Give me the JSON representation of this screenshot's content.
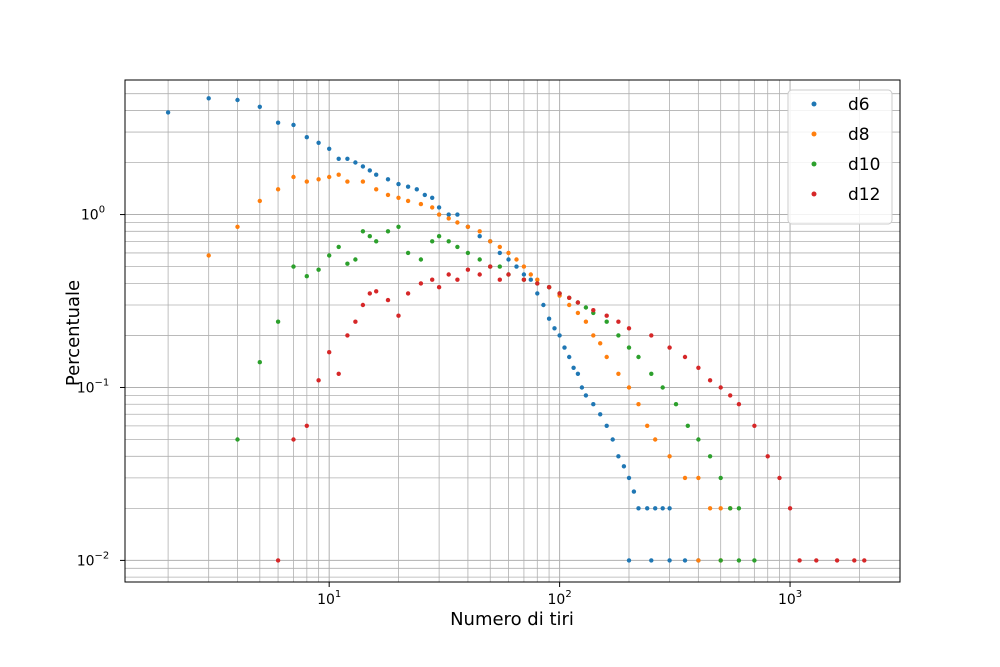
{
  "chart_data": {
    "type": "scatter",
    "title": "",
    "xlabel": "Numero di tiri",
    "ylabel": "Percentuale",
    "xscale": "log",
    "yscale": "log",
    "xlim": [
      1.3,
      3000
    ],
    "ylim": [
      0.0075,
      6.0
    ],
    "grid": "major and minor",
    "legend_position": "top-right",
    "x_ticks": [
      {
        "value": 10,
        "base": "10",
        "exp": "1"
      },
      {
        "value": 100,
        "base": "10",
        "exp": "2"
      },
      {
        "value": 1000,
        "base": "10",
        "exp": "3"
      }
    ],
    "y_ticks": [
      {
        "value": 0.01,
        "base": "10",
        "exp": "−2"
      },
      {
        "value": 0.1,
        "base": "10",
        "exp": "−1"
      },
      {
        "value": 1,
        "base": "10",
        "exp": "0"
      }
    ],
    "series": [
      {
        "name": "d6",
        "color": "#1f77b4",
        "points": [
          [
            2,
            3.9
          ],
          [
            3,
            4.7
          ],
          [
            4,
            4.6
          ],
          [
            5,
            4.2
          ],
          [
            6,
            3.4
          ],
          [
            7,
            3.3
          ],
          [
            8,
            2.8
          ],
          [
            9,
            2.6
          ],
          [
            10,
            2.4
          ],
          [
            11,
            2.1
          ],
          [
            12,
            2.1
          ],
          [
            13,
            2.0
          ],
          [
            14,
            1.9
          ],
          [
            15,
            1.8
          ],
          [
            16,
            1.7
          ],
          [
            18,
            1.6
          ],
          [
            20,
            1.5
          ],
          [
            22,
            1.45
          ],
          [
            24,
            1.4
          ],
          [
            26,
            1.3
          ],
          [
            28,
            1.25
          ],
          [
            30,
            1.1
          ],
          [
            33,
            1.0
          ],
          [
            36,
            1.0
          ],
          [
            40,
            0.85
          ],
          [
            45,
            0.75
          ],
          [
            50,
            0.7
          ],
          [
            55,
            0.6
          ],
          [
            60,
            0.55
          ],
          [
            65,
            0.5
          ],
          [
            70,
            0.45
          ],
          [
            75,
            0.42
          ],
          [
            80,
            0.35
          ],
          [
            85,
            0.3
          ],
          [
            90,
            0.25
          ],
          [
            95,
            0.22
          ],
          [
            100,
            0.2
          ],
          [
            105,
            0.17
          ],
          [
            110,
            0.15
          ],
          [
            115,
            0.13
          ],
          [
            120,
            0.12
          ],
          [
            125,
            0.1
          ],
          [
            130,
            0.09
          ],
          [
            140,
            0.08
          ],
          [
            150,
            0.07
          ],
          [
            160,
            0.06
          ],
          [
            170,
            0.05
          ],
          [
            180,
            0.04
          ],
          [
            190,
            0.035
          ],
          [
            200,
            0.03
          ],
          [
            210,
            0.025
          ],
          [
            220,
            0.02
          ],
          [
            240,
            0.02
          ],
          [
            260,
            0.02
          ],
          [
            280,
            0.02
          ],
          [
            300,
            0.02
          ],
          [
            200,
            0.01
          ],
          [
            250,
            0.01
          ],
          [
            300,
            0.01
          ],
          [
            350,
            0.01
          ],
          [
            400,
            0.01
          ]
        ]
      },
      {
        "name": "d8",
        "color": "#ff7f0e",
        "points": [
          [
            3,
            0.58
          ],
          [
            4,
            0.85
          ],
          [
            5,
            1.2
          ],
          [
            6,
            1.4
          ],
          [
            7,
            1.65
          ],
          [
            8,
            1.55
          ],
          [
            9,
            1.6
          ],
          [
            10,
            1.65
          ],
          [
            11,
            1.7
          ],
          [
            12,
            1.55
          ],
          [
            14,
            1.55
          ],
          [
            16,
            1.4
          ],
          [
            18,
            1.3
          ],
          [
            20,
            1.25
          ],
          [
            22,
            1.2
          ],
          [
            25,
            1.15
          ],
          [
            28,
            1.1
          ],
          [
            30,
            1.0
          ],
          [
            33,
            0.95
          ],
          [
            36,
            0.9
          ],
          [
            40,
            0.85
          ],
          [
            45,
            0.8
          ],
          [
            50,
            0.7
          ],
          [
            55,
            0.65
          ],
          [
            60,
            0.6
          ],
          [
            65,
            0.55
          ],
          [
            70,
            0.5
          ],
          [
            75,
            0.45
          ],
          [
            80,
            0.42
          ],
          [
            90,
            0.38
          ],
          [
            100,
            0.34
          ],
          [
            110,
            0.3
          ],
          [
            120,
            0.27
          ],
          [
            130,
            0.24
          ],
          [
            140,
            0.2
          ],
          [
            150,
            0.18
          ],
          [
            160,
            0.15
          ],
          [
            180,
            0.12
          ],
          [
            200,
            0.1
          ],
          [
            220,
            0.08
          ],
          [
            240,
            0.06
          ],
          [
            260,
            0.05
          ],
          [
            300,
            0.04
          ],
          [
            350,
            0.03
          ],
          [
            400,
            0.03
          ],
          [
            450,
            0.02
          ],
          [
            500,
            0.02
          ],
          [
            550,
            0.02
          ],
          [
            400,
            0.01
          ],
          [
            500,
            0.01
          ]
        ]
      },
      {
        "name": "d10",
        "color": "#2ca02c",
        "points": [
          [
            4,
            0.05
          ],
          [
            5,
            0.14
          ],
          [
            6,
            0.24
          ],
          [
            7,
            0.5
          ],
          [
            8,
            0.44
          ],
          [
            9,
            0.48
          ],
          [
            10,
            0.58
          ],
          [
            11,
            0.65
          ],
          [
            12,
            0.52
          ],
          [
            13,
            0.55
          ],
          [
            14,
            0.8
          ],
          [
            15,
            0.75
          ],
          [
            16,
            0.7
          ],
          [
            18,
            0.8
          ],
          [
            20,
            0.85
          ],
          [
            22,
            0.6
          ],
          [
            25,
            0.55
          ],
          [
            28,
            0.7
          ],
          [
            30,
            0.75
          ],
          [
            33,
            0.7
          ],
          [
            36,
            0.65
          ],
          [
            40,
            0.6
          ],
          [
            45,
            0.55
          ],
          [
            50,
            0.5
          ],
          [
            55,
            0.5
          ],
          [
            60,
            0.45
          ],
          [
            70,
            0.42
          ],
          [
            80,
            0.4
          ],
          [
            90,
            0.38
          ],
          [
            100,
            0.35
          ],
          [
            110,
            0.33
          ],
          [
            120,
            0.31
          ],
          [
            130,
            0.29
          ],
          [
            140,
            0.27
          ],
          [
            160,
            0.24
          ],
          [
            180,
            0.2
          ],
          [
            200,
            0.17
          ],
          [
            220,
            0.15
          ],
          [
            250,
            0.12
          ],
          [
            280,
            0.1
          ],
          [
            320,
            0.08
          ],
          [
            360,
            0.06
          ],
          [
            400,
            0.05
          ],
          [
            450,
            0.04
          ],
          [
            500,
            0.03
          ],
          [
            550,
            0.02
          ],
          [
            600,
            0.02
          ],
          [
            500,
            0.01
          ],
          [
            600,
            0.01
          ],
          [
            700,
            0.01
          ]
        ]
      },
      {
        "name": "d12",
        "color": "#d62728",
        "points": [
          [
            6,
            0.01
          ],
          [
            7,
            0.05
          ],
          [
            8,
            0.06
          ],
          [
            9,
            0.11
          ],
          [
            10,
            0.16
          ],
          [
            11,
            0.12
          ],
          [
            12,
            0.2
          ],
          [
            13,
            0.24
          ],
          [
            14,
            0.3
          ],
          [
            15,
            0.35
          ],
          [
            16,
            0.36
          ],
          [
            18,
            0.32
          ],
          [
            20,
            0.26
          ],
          [
            22,
            0.35
          ],
          [
            25,
            0.4
          ],
          [
            28,
            0.42
          ],
          [
            30,
            0.38
          ],
          [
            33,
            0.45
          ],
          [
            36,
            0.42
          ],
          [
            40,
            0.48
          ],
          [
            45,
            0.45
          ],
          [
            50,
            0.5
          ],
          [
            55,
            0.42
          ],
          [
            60,
            0.45
          ],
          [
            70,
            0.42
          ],
          [
            80,
            0.4
          ],
          [
            90,
            0.38
          ],
          [
            100,
            0.35
          ],
          [
            110,
            0.33
          ],
          [
            120,
            0.31
          ],
          [
            140,
            0.28
          ],
          [
            160,
            0.26
          ],
          [
            180,
            0.24
          ],
          [
            200,
            0.22
          ],
          [
            250,
            0.2
          ],
          [
            300,
            0.17
          ],
          [
            350,
            0.15
          ],
          [
            400,
            0.13
          ],
          [
            450,
            0.11
          ],
          [
            500,
            0.1
          ],
          [
            550,
            0.09
          ],
          [
            600,
            0.08
          ],
          [
            700,
            0.06
          ],
          [
            800,
            0.04
          ],
          [
            900,
            0.03
          ],
          [
            1000,
            0.02
          ],
          [
            1100,
            0.01
          ],
          [
            1300,
            0.01
          ],
          [
            1600,
            0.01
          ],
          [
            1900,
            0.01
          ],
          [
            2100,
            0.01
          ]
        ]
      }
    ]
  }
}
